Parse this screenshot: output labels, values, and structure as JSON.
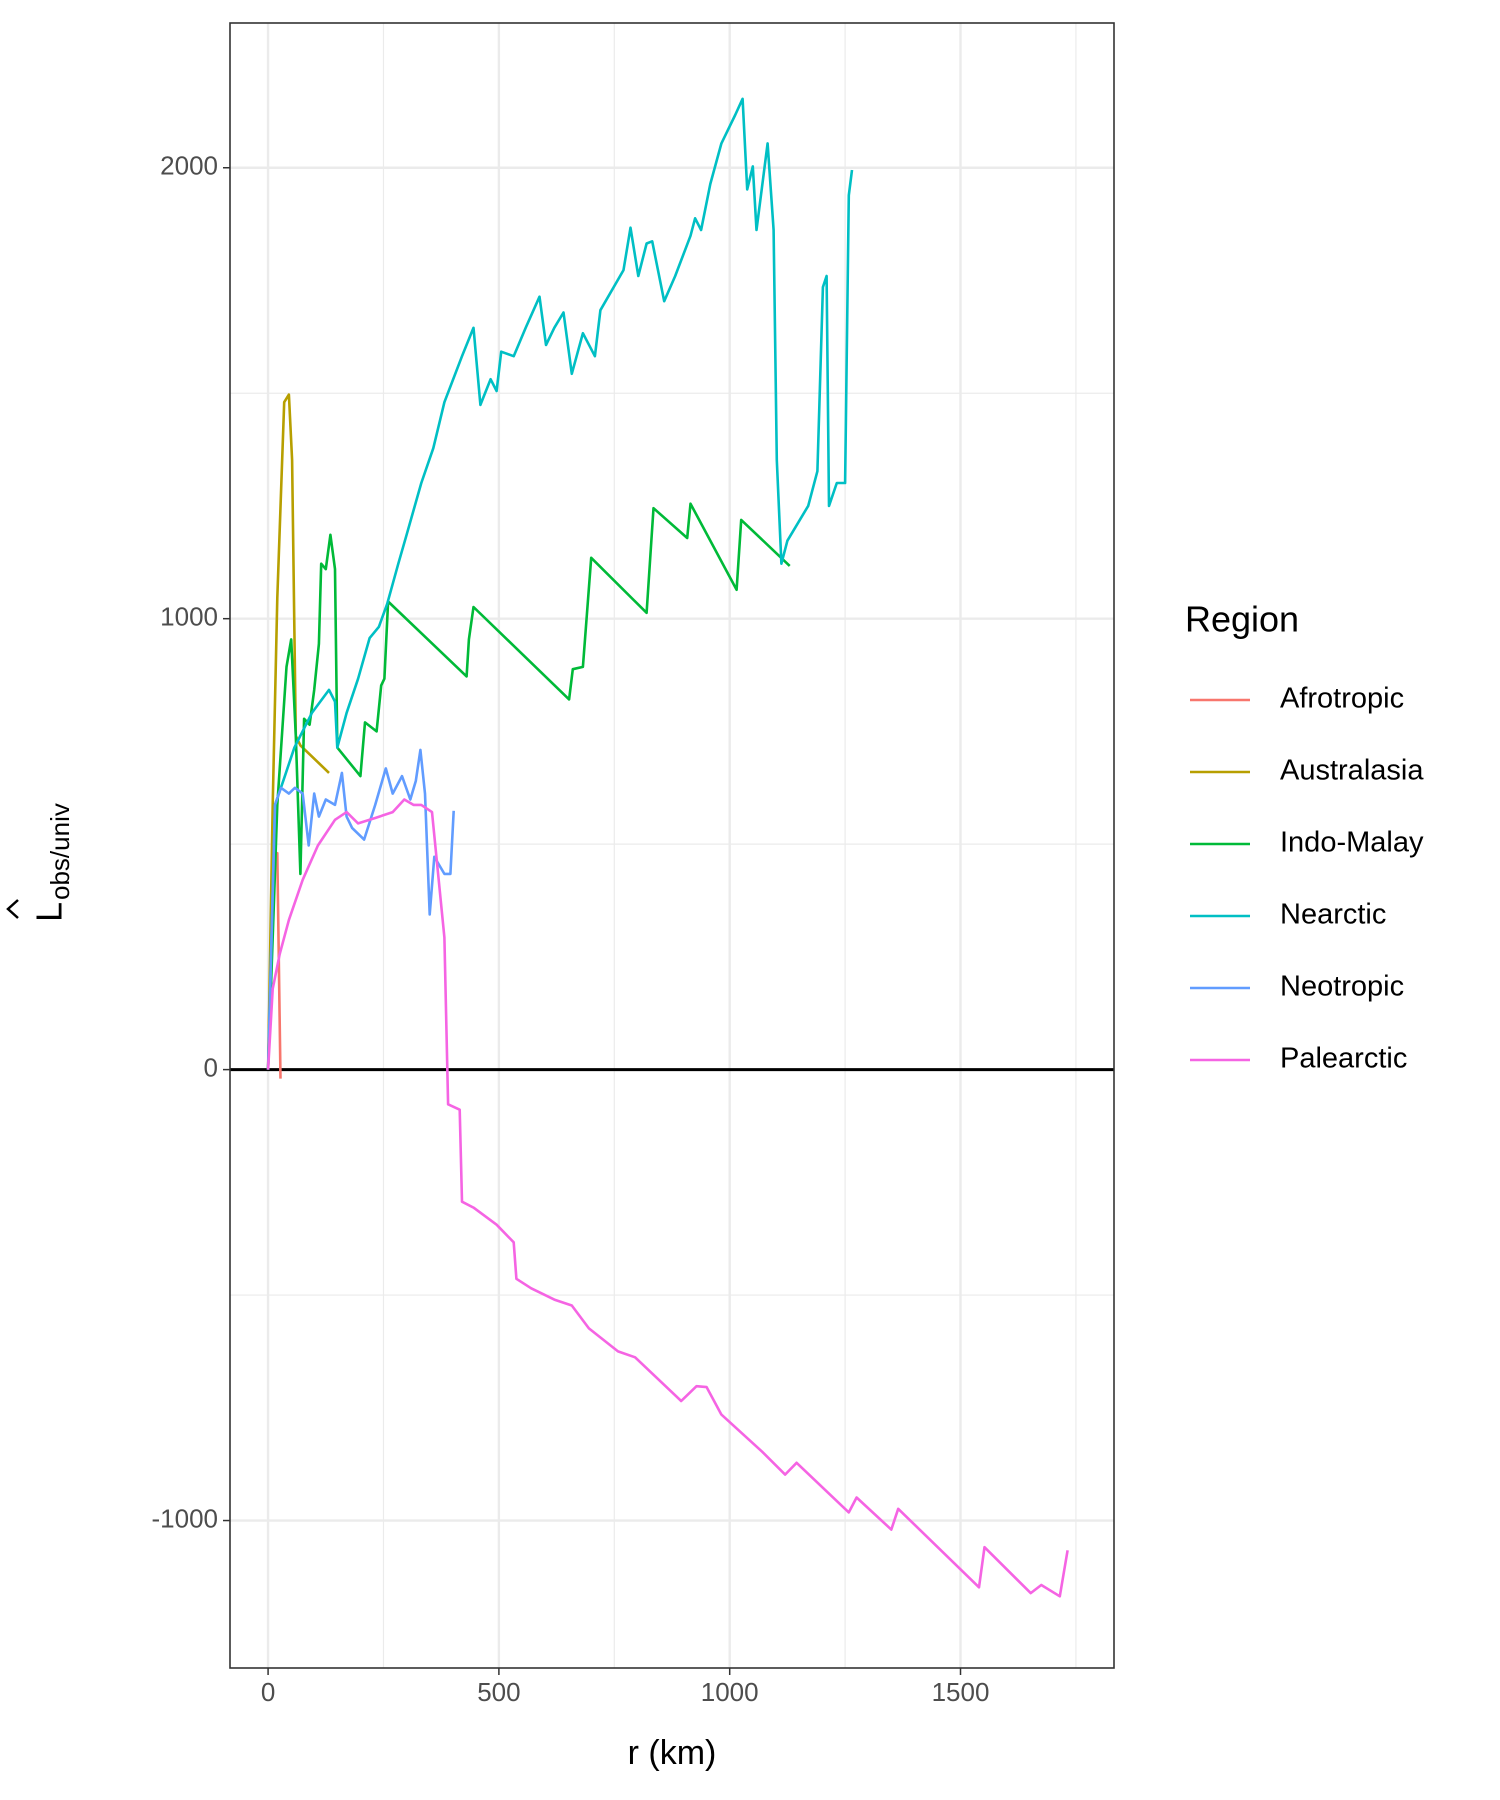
{
  "chart_data": {
    "type": "line",
    "xlabel": "r (km)",
    "ylabel_main": "L",
    "ylabel_sub": "obs/univ",
    "legend_title": "Region",
    "legend_position": "right",
    "grid": true,
    "xlim": [
      -82.5,
      1832.5
    ],
    "ylim": [
      -1327,
      2321
    ],
    "xticks": [
      0,
      500,
      1000,
      1500
    ],
    "yticks": [
      -1000,
      0,
      1000,
      2000
    ],
    "x_minor_grid": [
      250,
      750,
      1250,
      1750
    ],
    "y_minor_grid": [
      -500,
      500,
      1500
    ],
    "hline": 0,
    "series": [
      {
        "name": "Afrotropic",
        "color": "#F8766D",
        "x": [
          0,
          10,
          20,
          27
        ],
        "values": [
          0,
          480,
          480,
          -20
        ]
      },
      {
        "name": "Australasia",
        "color": "#B79F00",
        "x": [
          0,
          10,
          20,
          35,
          45,
          52,
          60,
          70,
          132
        ],
        "values": [
          0,
          587,
          1046,
          1480,
          1497,
          1352,
          740,
          719,
          658
        ]
      },
      {
        "name": "Indo-Malay",
        "color": "#00BA38",
        "x": [
          0,
          20,
          40,
          50,
          60,
          70,
          78,
          90,
          100,
          110,
          115,
          125,
          135,
          145,
          150,
          200,
          210,
          235,
          245,
          252,
          260,
          430,
          435,
          445,
          652,
          660,
          682,
          700,
          820,
          835,
          908,
          915,
          1015,
          1025,
          1130
        ],
        "values": [
          0,
          587,
          893,
          954,
          740,
          434,
          778,
          765,
          842,
          944,
          1122,
          1110,
          1186,
          1110,
          714,
          651,
          770,
          750,
          852,
          867,
          1038,
          872,
          954,
          1026,
          821,
          888,
          893,
          1135,
          1013,
          1245,
          1179,
          1255,
          1064,
          1219,
          1117
        ]
      },
      {
        "name": "Nearctic",
        "color": "#00BFC4",
        "x": [
          0,
          15,
          32,
          57,
          95,
          132,
          145,
          150,
          170,
          195,
          220,
          240,
          258,
          282,
          300,
          332,
          358,
          382,
          420,
          445,
          460,
          482,
          495,
          505,
          532,
          558,
          588,
          602,
          620,
          640,
          658,
          682,
          708,
          720,
          770,
          785,
          802,
          820,
          832,
          858,
          882,
          915,
          925,
          938,
          958,
          982,
          1012,
          1028,
          1038,
          1050,
          1058,
          1082,
          1095,
          1102,
          1112,
          1125,
          1170,
          1190,
          1202,
          1210,
          1215,
          1232,
          1250,
          1258,
          1265
        ],
        "values": [
          0,
          587,
          638,
          714,
          791,
          842,
          816,
          714,
          791,
          867,
          957,
          982,
          1033,
          1122,
          1186,
          1301,
          1378,
          1480,
          1582,
          1645,
          1474,
          1531,
          1505,
          1592,
          1582,
          1645,
          1714,
          1607,
          1645,
          1679,
          1543,
          1633,
          1582,
          1684,
          1773,
          1867,
          1760,
          1832,
          1837,
          1704,
          1760,
          1849,
          1888,
          1862,
          1964,
          2054,
          2117,
          2153,
          1952,
          2003,
          1862,
          2054,
          1862,
          1352,
          1122,
          1173,
          1250,
          1327,
          1735,
          1760,
          1250,
          1301,
          1301,
          1939,
          1995
        ]
      },
      {
        "name": "Neotropic",
        "color": "#619CFF",
        "x": [
          0,
          15,
          28,
          45,
          58,
          75,
          88,
          100,
          110,
          125,
          145,
          160,
          170,
          182,
          208,
          232,
          255,
          270,
          290,
          308,
          320,
          330,
          340,
          350,
          360,
          382,
          395,
          402
        ],
        "values": [
          0,
          587,
          625,
          612,
          625,
          612,
          497,
          612,
          561,
          599,
          587,
          658,
          561,
          536,
          510,
          587,
          668,
          612,
          651,
          599,
          640,
          709,
          612,
          344,
          472,
          434,
          434,
          574
        ]
      },
      {
        "name": "Palearctic",
        "color": "#F564E3",
        "x": [
          0,
          10,
          25,
          45,
          75,
          108,
          145,
          170,
          195,
          232,
          270,
          295,
          315,
          332,
          355,
          382,
          390,
          415,
          420,
          445,
          495,
          532,
          538,
          570,
          620,
          658,
          695,
          758,
          795,
          895,
          928,
          950,
          982,
          1070,
          1120,
          1145,
          1258,
          1275,
          1350,
          1365,
          1540,
          1552,
          1652,
          1675,
          1715,
          1732
        ],
        "values": [
          0,
          179,
          255,
          332,
          421,
          497,
          554,
          571,
          546,
          558,
          571,
          599,
          587,
          587,
          571,
          293,
          -77,
          -89,
          -293,
          -306,
          -344,
          -383,
          -464,
          -485,
          -510,
          -523,
          -574,
          -625,
          -638,
          -735,
          -702,
          -704,
          -765,
          -847,
          -898,
          -872,
          -982,
          -949,
          -1020,
          -974,
          -1148,
          -1059,
          -1161,
          -1143,
          -1168,
          -1066
        ]
      }
    ]
  }
}
